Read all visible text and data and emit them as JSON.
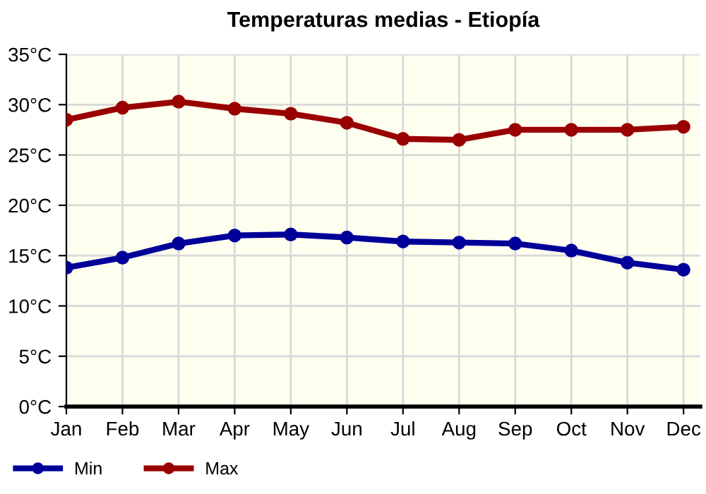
{
  "chart_data": {
    "type": "line",
    "title": "Temperaturas medias - Etiopía",
    "categories": [
      "Jan",
      "Feb",
      "Mar",
      "Apr",
      "May",
      "Jun",
      "Jul",
      "Aug",
      "Sep",
      "Oct",
      "Nov",
      "Dec"
    ],
    "series": [
      {
        "name": "Min",
        "color": "#000099",
        "values": [
          13.8,
          14.8,
          16.2,
          17.0,
          17.1,
          16.8,
          16.4,
          16.3,
          16.2,
          15.5,
          14.3,
          13.6
        ]
      },
      {
        "name": "Max",
        "color": "#990000",
        "values": [
          28.5,
          29.7,
          30.3,
          29.6,
          29.1,
          28.2,
          26.6,
          26.5,
          27.5,
          27.5,
          27.5,
          27.8
        ]
      }
    ],
    "ylim": [
      0,
      35
    ],
    "yticks": [
      {
        "value": 0,
        "label": "0°C"
      },
      {
        "value": 5,
        "label": "5°C"
      },
      {
        "value": 10,
        "label": "10°C"
      },
      {
        "value": 15,
        "label": "15°C"
      },
      {
        "value": 20,
        "label": "20°C"
      },
      {
        "value": 25,
        "label": "25°C"
      },
      {
        "value": 30,
        "label": "30°C"
      },
      {
        "value": 35,
        "label": "35°C"
      }
    ],
    "grid": true,
    "legend": "bottom left",
    "marker": "circle",
    "line_style": "solid"
  }
}
